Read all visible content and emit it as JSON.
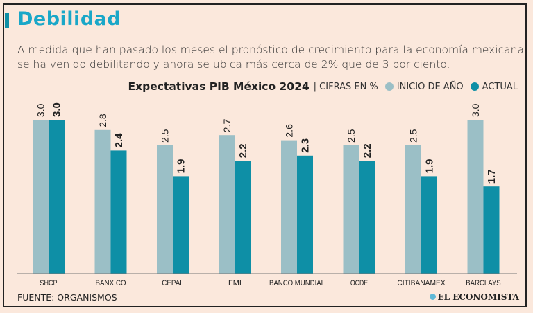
{
  "header": {
    "title": "Debilidad",
    "subtitle": "A medida que han pasado los meses el pronóstico de crecimiento para la economía mexicana se ha venido debilitando y ahora se ubica más cerca de 2% que de 3 por ciento."
  },
  "footer": {
    "source": "FUENTE: ORGANISMOS",
    "logo": "EL ECONOMISTA"
  },
  "colors": {
    "inicio": "#9bbfc6",
    "actual": "#0e8fa6",
    "title": "#1aa7c8",
    "background": "#fbe8dc"
  },
  "chart_data": {
    "type": "bar",
    "title": "Expectativas PIB México 2024",
    "units": "| CIFRAS EN %",
    "categories": [
      "SHCP",
      "BANXICO",
      "CEPAL",
      "FMI",
      "BANCO MUNDIAL",
      "OCDE",
      "CITIBANAMEX",
      "BARCLAYS"
    ],
    "series": [
      {
        "name": "INICIO DE AÑO",
        "values": [
          3.0,
          2.8,
          2.5,
          2.7,
          2.6,
          2.5,
          2.5,
          3.0
        ]
      },
      {
        "name": "ACTUAL",
        "values": [
          3.0,
          2.4,
          1.9,
          2.2,
          2.3,
          2.2,
          1.9,
          1.7
        ]
      }
    ],
    "ylim": [
      0,
      3.0
    ],
    "legend": "top-right",
    "grid": false
  }
}
